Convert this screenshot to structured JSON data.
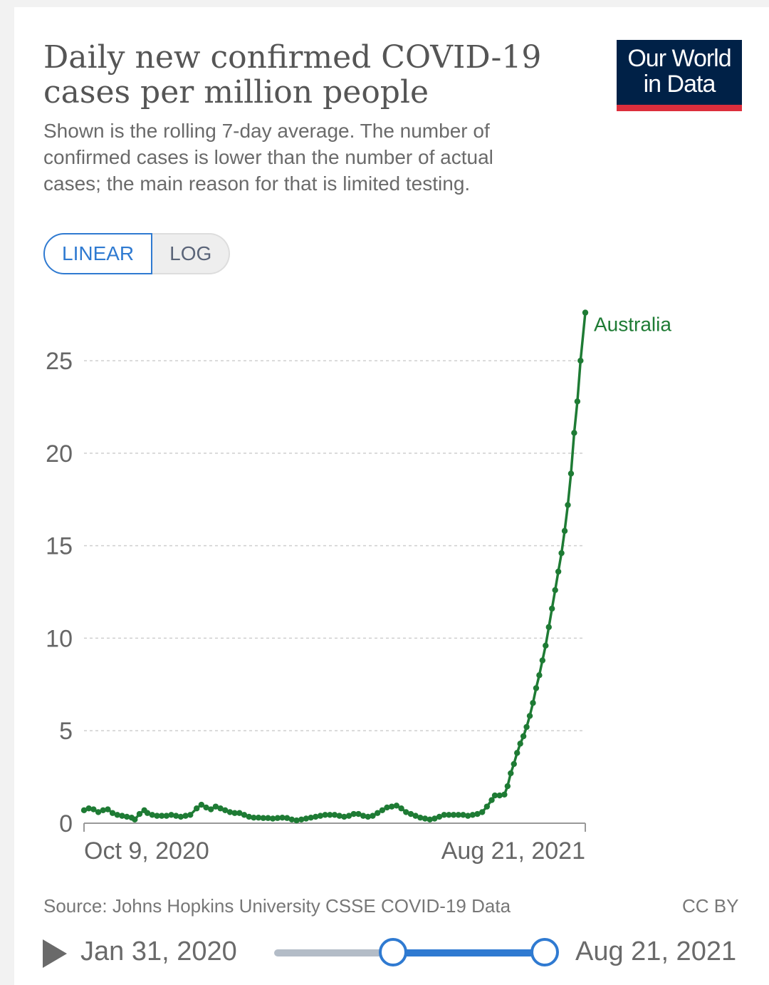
{
  "header": {
    "title": "Daily new confirmed COVID-19 cases per million people",
    "subtitle": "Shown is the rolling 7-day average. The number of confirmed cases is lower than the number of actual cases; the main reason for that is limited testing.",
    "logo_line1": "Our World",
    "logo_line2": "in Data",
    "logo_colors": {
      "background": "#002147",
      "stripe": "#dc2e3c"
    }
  },
  "controls": {
    "scale_options": [
      "LINEAR",
      "LOG"
    ],
    "selected_scale": "LINEAR",
    "accent_color": "#2f7ad1"
  },
  "chart_data": {
    "type": "line",
    "title": "Daily new confirmed COVID-19 cases per million people",
    "xlabel": "",
    "ylabel": "",
    "x_start": "2020-10-09",
    "x_end": "2021-08-21",
    "x_tick_labels": [
      "Oct 9, 2020",
      "Aug 21, 2021"
    ],
    "y_ticks": [
      0,
      5,
      10,
      15,
      20,
      25
    ],
    "ylim": [
      0,
      27.7
    ],
    "grid": "horizontal dashed",
    "series": [
      {
        "name": "Australia",
        "color": "#1e7b34",
        "points": [
          [
            "2020-10-09",
            0.7
          ],
          [
            "2020-10-12",
            0.8
          ],
          [
            "2020-10-15",
            0.75
          ],
          [
            "2020-10-18",
            0.6
          ],
          [
            "2020-10-21",
            0.7
          ],
          [
            "2020-10-24",
            0.75
          ],
          [
            "2020-10-27",
            0.55
          ],
          [
            "2020-10-30",
            0.45
          ],
          [
            "2020-11-02",
            0.4
          ],
          [
            "2020-11-05",
            0.35
          ],
          [
            "2020-11-08",
            0.3
          ],
          [
            "2020-11-10",
            0.2
          ],
          [
            "2020-11-13",
            0.5
          ],
          [
            "2020-11-16",
            0.7
          ],
          [
            "2020-11-18",
            0.55
          ],
          [
            "2020-11-21",
            0.45
          ],
          [
            "2020-11-24",
            0.4
          ],
          [
            "2020-11-27",
            0.4
          ],
          [
            "2020-11-30",
            0.4
          ],
          [
            "2020-12-03",
            0.45
          ],
          [
            "2020-12-06",
            0.4
          ],
          [
            "2020-12-09",
            0.35
          ],
          [
            "2020-12-12",
            0.4
          ],
          [
            "2020-12-15",
            0.45
          ],
          [
            "2020-12-19",
            0.8
          ],
          [
            "2020-12-22",
            1.0
          ],
          [
            "2020-12-25",
            0.85
          ],
          [
            "2020-12-28",
            0.75
          ],
          [
            "2020-12-31",
            0.9
          ],
          [
            "2021-01-03",
            0.8
          ],
          [
            "2021-01-06",
            0.7
          ],
          [
            "2021-01-09",
            0.6
          ],
          [
            "2021-01-12",
            0.55
          ],
          [
            "2021-01-15",
            0.55
          ],
          [
            "2021-01-18",
            0.45
          ],
          [
            "2021-01-21",
            0.35
          ],
          [
            "2021-01-24",
            0.3
          ],
          [
            "2021-01-27",
            0.3
          ],
          [
            "2021-01-30",
            0.28
          ],
          [
            "2021-02-02",
            0.28
          ],
          [
            "2021-02-05",
            0.25
          ],
          [
            "2021-02-08",
            0.28
          ],
          [
            "2021-02-11",
            0.3
          ],
          [
            "2021-02-14",
            0.28
          ],
          [
            "2021-02-17",
            0.2
          ],
          [
            "2021-02-20",
            0.15
          ],
          [
            "2021-02-23",
            0.2
          ],
          [
            "2021-02-26",
            0.25
          ],
          [
            "2021-03-01",
            0.3
          ],
          [
            "2021-03-04",
            0.35
          ],
          [
            "2021-03-07",
            0.4
          ],
          [
            "2021-03-10",
            0.45
          ],
          [
            "2021-03-13",
            0.45
          ],
          [
            "2021-03-16",
            0.45
          ],
          [
            "2021-03-19",
            0.4
          ],
          [
            "2021-03-22",
            0.35
          ],
          [
            "2021-03-25",
            0.4
          ],
          [
            "2021-03-28",
            0.5
          ],
          [
            "2021-03-31",
            0.5
          ],
          [
            "2021-04-03",
            0.4
          ],
          [
            "2021-04-06",
            0.35
          ],
          [
            "2021-04-09",
            0.4
          ],
          [
            "2021-04-12",
            0.55
          ],
          [
            "2021-04-15",
            0.7
          ],
          [
            "2021-04-18",
            0.85
          ],
          [
            "2021-04-21",
            0.9
          ],
          [
            "2021-04-24",
            0.95
          ],
          [
            "2021-04-27",
            0.8
          ],
          [
            "2021-04-30",
            0.6
          ],
          [
            "2021-05-03",
            0.5
          ],
          [
            "2021-05-06",
            0.4
          ],
          [
            "2021-05-09",
            0.3
          ],
          [
            "2021-05-12",
            0.25
          ],
          [
            "2021-05-15",
            0.2
          ],
          [
            "2021-05-18",
            0.25
          ],
          [
            "2021-05-21",
            0.35
          ],
          [
            "2021-05-24",
            0.45
          ],
          [
            "2021-05-27",
            0.45
          ],
          [
            "2021-05-30",
            0.45
          ],
          [
            "2021-06-02",
            0.45
          ],
          [
            "2021-06-05",
            0.45
          ],
          [
            "2021-06-08",
            0.4
          ],
          [
            "2021-06-11",
            0.45
          ],
          [
            "2021-06-14",
            0.5
          ],
          [
            "2021-06-17",
            0.6
          ],
          [
            "2021-06-20",
            0.9
          ],
          [
            "2021-06-23",
            1.25
          ],
          [
            "2021-06-25",
            1.5
          ],
          [
            "2021-06-28",
            1.5
          ],
          [
            "2021-07-01",
            1.55
          ],
          [
            "2021-07-03",
            2.0
          ],
          [
            "2021-07-05",
            2.7
          ],
          [
            "2021-07-07",
            3.2
          ],
          [
            "2021-07-09",
            3.8
          ],
          [
            "2021-07-11",
            4.3
          ],
          [
            "2021-07-13",
            4.7
          ],
          [
            "2021-07-15",
            5.2
          ],
          [
            "2021-07-17",
            5.8
          ],
          [
            "2021-07-19",
            6.5
          ],
          [
            "2021-07-21",
            7.3
          ],
          [
            "2021-07-23",
            8.0
          ],
          [
            "2021-07-25",
            8.8
          ],
          [
            "2021-07-27",
            9.6
          ],
          [
            "2021-07-29",
            10.6
          ],
          [
            "2021-07-31",
            11.6
          ],
          [
            "2021-08-02",
            12.6
          ],
          [
            "2021-08-04",
            13.6
          ],
          [
            "2021-08-06",
            14.6
          ],
          [
            "2021-08-08",
            15.8
          ],
          [
            "2021-08-10",
            17.2
          ],
          [
            "2021-08-12",
            18.9
          ],
          [
            "2021-08-14",
            21.1
          ],
          [
            "2021-08-16",
            22.8
          ],
          [
            "2021-08-18",
            25.0
          ],
          [
            "2021-08-21",
            27.6
          ]
        ]
      }
    ]
  },
  "footer": {
    "source": "Source: Johns Hopkins University CSSE COVID-19 Data",
    "license": "CC BY"
  },
  "timeline": {
    "start_label": "Jan 31, 2020",
    "end_label": "Aug 21, 2021",
    "range_start_fraction": 0.44,
    "range_end_fraction": 1.0
  }
}
